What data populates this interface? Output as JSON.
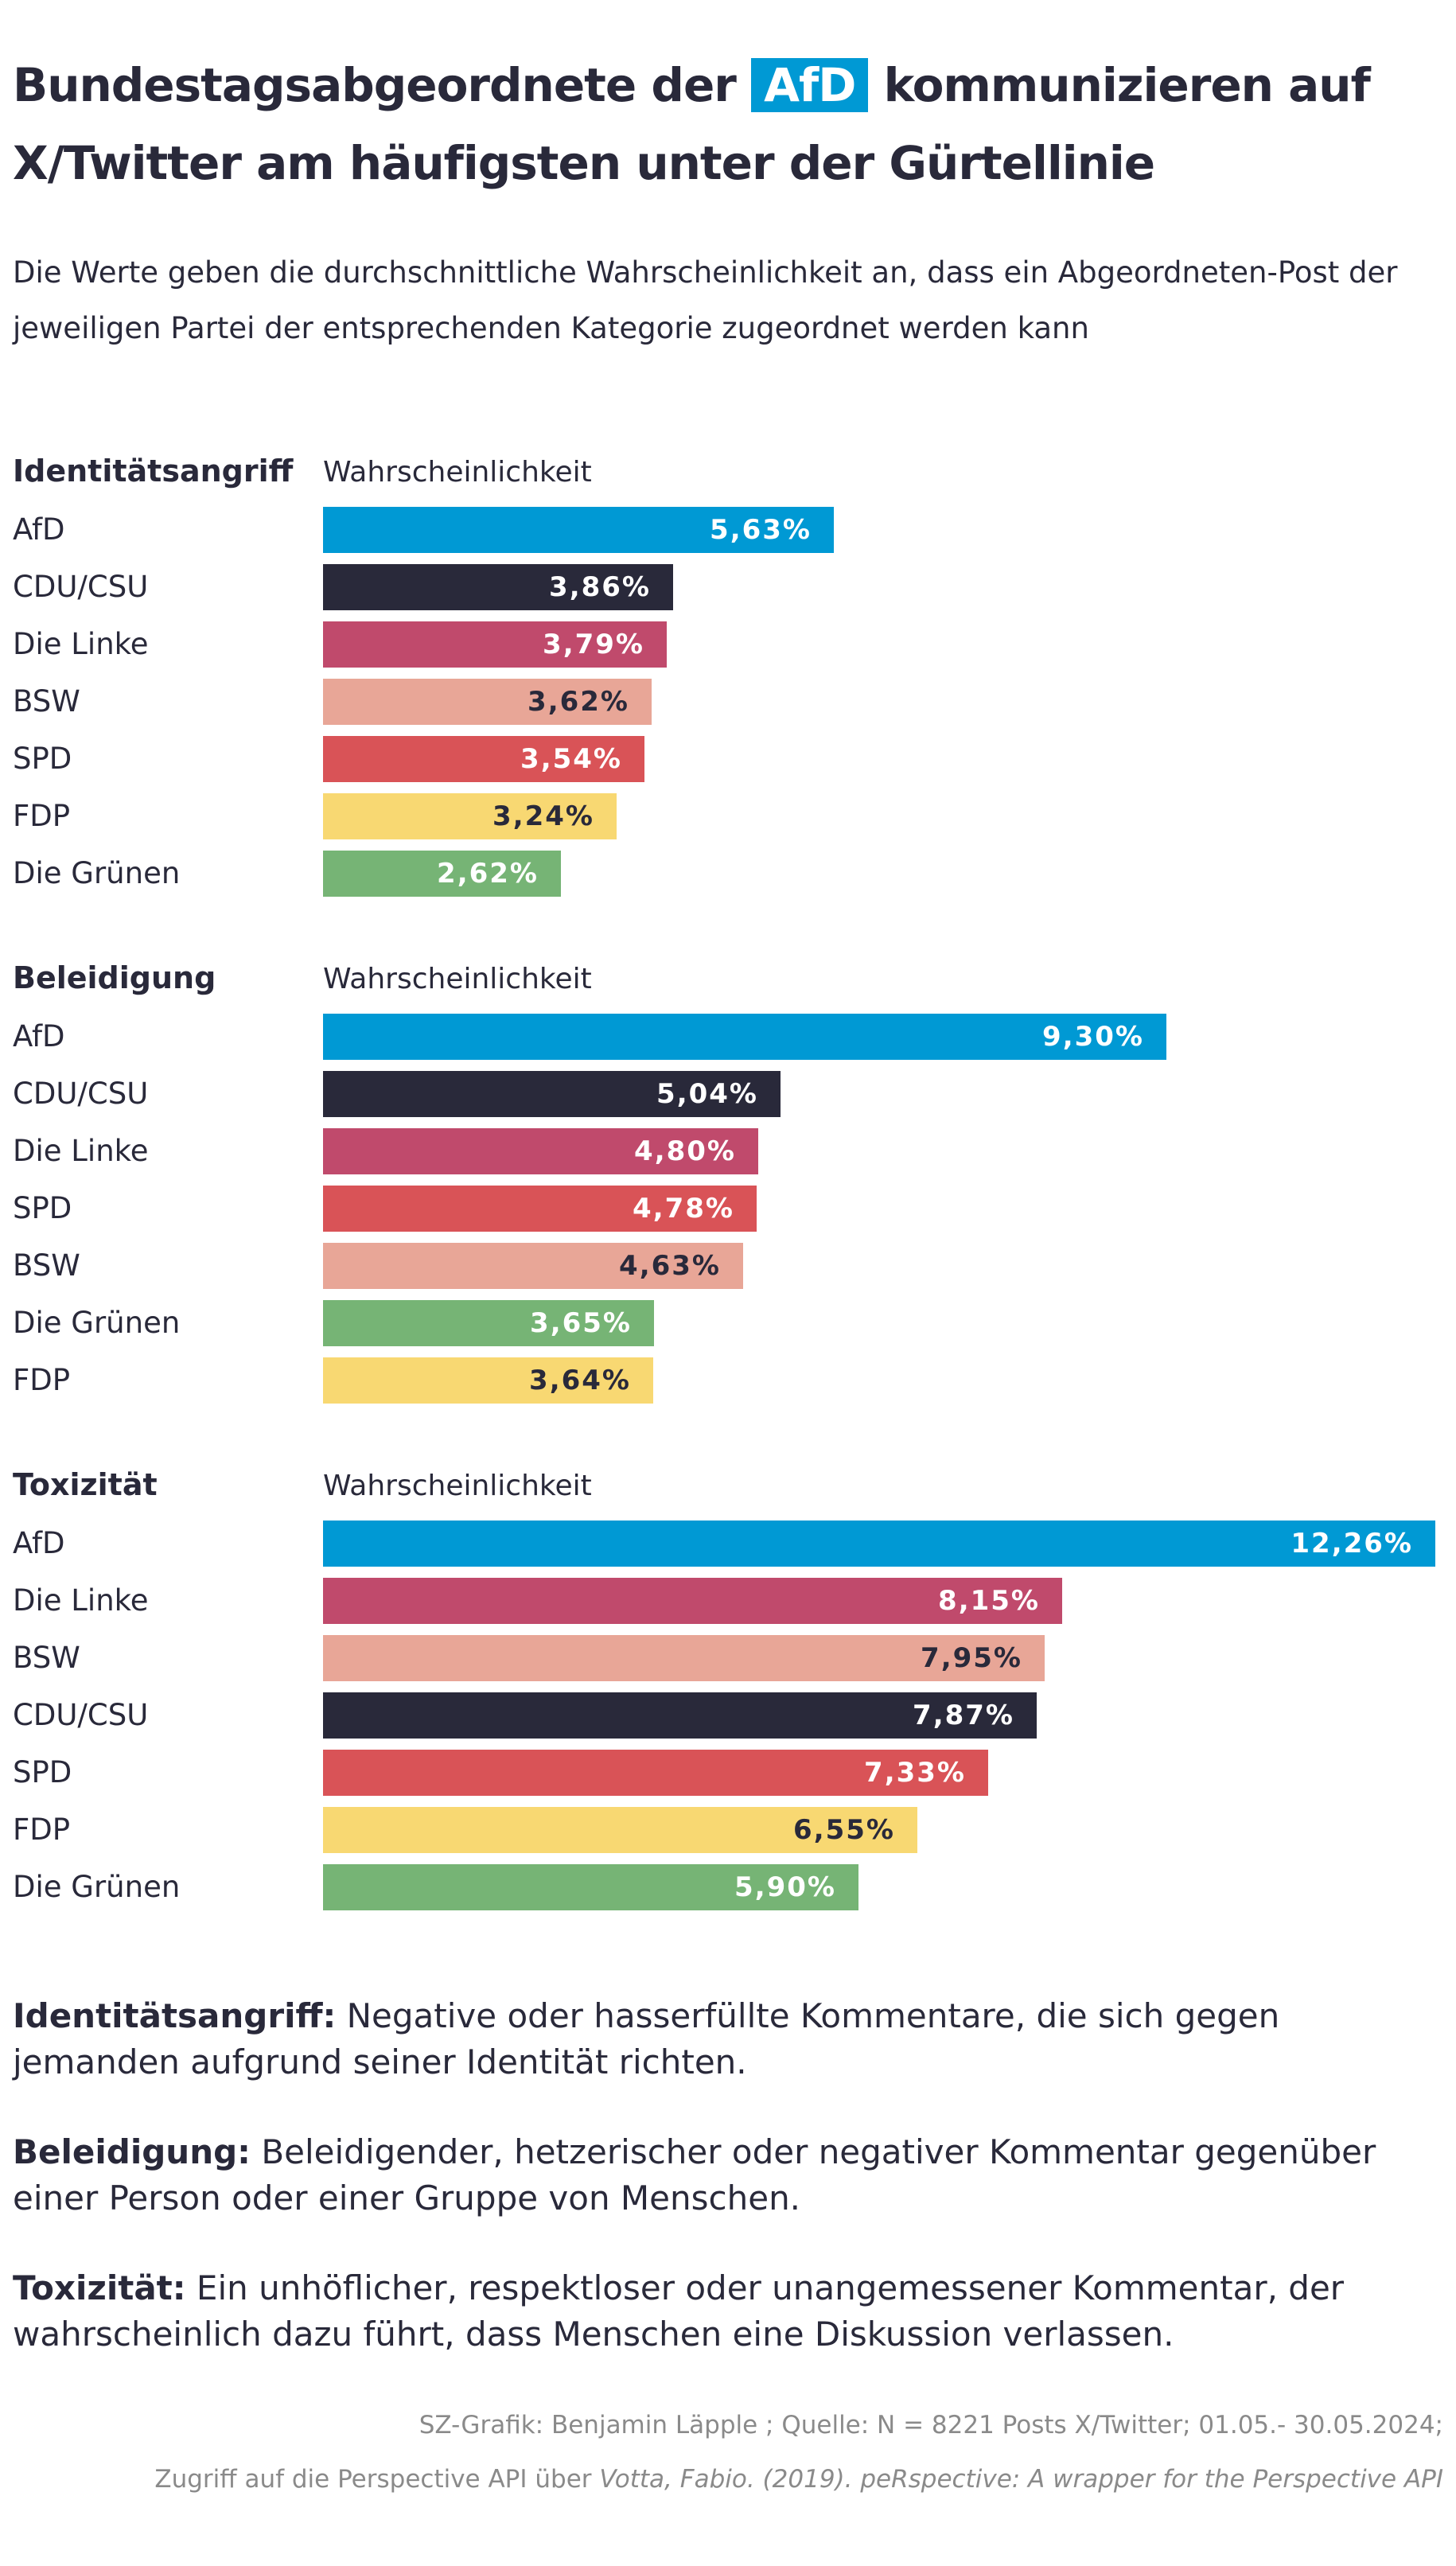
{
  "title": {
    "before": "Bundestagsabgeordnete der",
    "highlight": "AfD",
    "after": "kommunizieren auf X/Twitter am häufigsten unter der Gürtellinie"
  },
  "subtitle": "Die Werte geben die durchschnittliche Wahrscheinlichkeit an, dass ein Abgeordneten-Post der jeweiligen Partei der entsprechenden Kategorie zugeordnet werden kann",
  "colors": {
    "AfD": "#0099d4",
    "CDU/CSU": "#29293a",
    "Die Linke": "#c04a6c",
    "BSW": "#e8a697",
    "SPD": "#d95357",
    "FDP": "#f8d872",
    "Die Grünen": "#76b475"
  },
  "chart_data": [
    {
      "type": "bar",
      "title": "Identitätsangriff",
      "xlabel": "Wahrscheinlichkeit",
      "categories": [
        "AfD",
        "CDU/CSU",
        "Die Linke",
        "BSW",
        "SPD",
        "FDP",
        "Die Grünen"
      ],
      "values": [
        5.63,
        3.86,
        3.79,
        3.62,
        3.54,
        3.24,
        2.62
      ],
      "labels": [
        "5,63%",
        "3,86%",
        "3,79%",
        "3,62%",
        "3,54%",
        "3,24%",
        "2,62%"
      ],
      "xlim": [
        0,
        12.26
      ]
    },
    {
      "type": "bar",
      "title": "Beleidigung",
      "xlabel": "Wahrscheinlichkeit",
      "categories": [
        "AfD",
        "CDU/CSU",
        "Die Linke",
        "SPD",
        "BSW",
        "Die Grünen",
        "FDP"
      ],
      "values": [
        9.3,
        5.04,
        4.8,
        4.78,
        4.63,
        3.65,
        3.64
      ],
      "labels": [
        "9,30%",
        "5,04%",
        "4,80%",
        "4,78%",
        "4,63%",
        "3,65%",
        "3,64%"
      ],
      "xlim": [
        0,
        12.26
      ]
    },
    {
      "type": "bar",
      "title": "Toxizität",
      "xlabel": "Wahrscheinlichkeit",
      "categories": [
        "AfD",
        "Die Linke",
        "BSW",
        "CDU/CSU",
        "SPD",
        "FDP",
        "Die Grünen"
      ],
      "values": [
        12.26,
        8.15,
        7.95,
        7.87,
        7.33,
        6.55,
        5.9
      ],
      "labels": [
        "12,26%",
        "8,15%",
        "7,95%",
        "7,87%",
        "7,33%",
        "6,55%",
        "5,90%"
      ],
      "xlim": [
        0,
        12.26
      ]
    }
  ],
  "definitions": [
    {
      "term": "Identitätsangriff:",
      "text": "Negative oder hasserfüllte Kommentare, die sich gegen jemanden aufgrund seiner Identität richten."
    },
    {
      "term": "Beleidigung:",
      "text": "Beleidigender, hetzerischer oder negativer Kommentar gegenüber einer Person oder einer Gruppe von Menschen."
    },
    {
      "term": "Toxizität:",
      "text": "Ein unhöflicher, respektloser oder unangemessener Kommentar, der wahrscheinlich dazu führt, dass Menschen eine Diskussion verlassen."
    }
  ],
  "footer": {
    "line1": "SZ-Grafik: Benjamin Läpple ; Quelle: N = 8221 Posts X/Twitter; 01.05.- 30.05.2024;",
    "line2_plain": "Zugriff auf die Perspective API über",
    "line2_italic": "Votta, Fabio. (2019). peRspective: A wrapper for the Perspective API"
  }
}
